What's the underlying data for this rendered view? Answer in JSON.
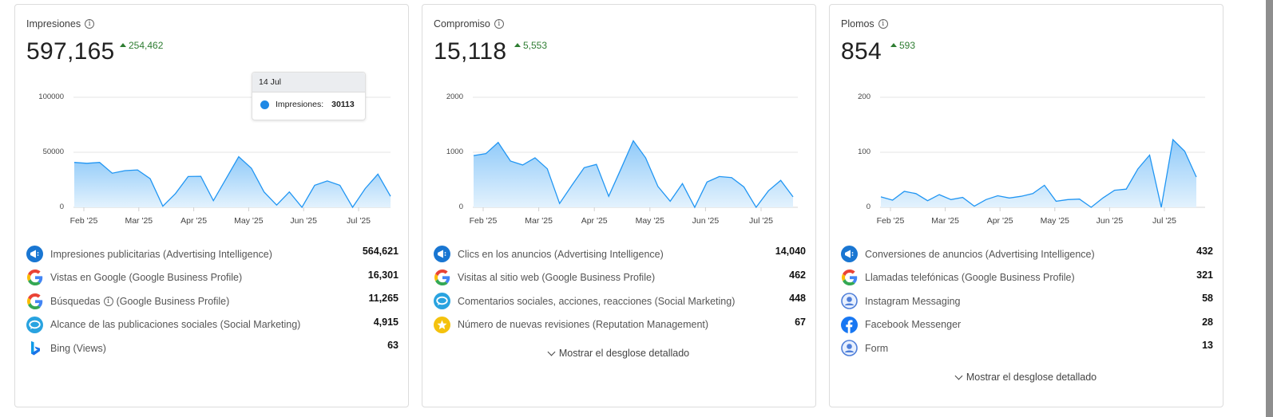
{
  "cards": [
    {
      "title": "Impresiones",
      "value": "597,165",
      "delta": "254,462",
      "y_ticks": [
        "100000",
        "50000",
        "0"
      ],
      "x_ticks": [
        "Feb '25",
        "Mar '25",
        "Apr '25",
        "May '25",
        "Jun '25",
        "Jul '25"
      ],
      "tooltip": {
        "date": "14 Jul",
        "series": "Impresiones:",
        "value": "30113"
      },
      "rows": [
        {
          "icon": "advertising-megaphone-icon",
          "label": "Impresiones publicitarias (Advertising Intelligence)",
          "value": "564,621"
        },
        {
          "icon": "google-icon",
          "label": "Vistas en Google (Google Business Profile)",
          "value": "16,301"
        },
        {
          "icon": "google-icon",
          "label_a": "Búsquedas",
          "label_b": "(Google Business Profile)",
          "value": "11,265"
        },
        {
          "icon": "social-chat-icon",
          "label": "Alcance de las publicaciones sociales (Social Marketing)",
          "value": "4,915"
        },
        {
          "icon": "bing-icon",
          "label": "Bing (Views)",
          "value": "63"
        }
      ]
    },
    {
      "title": "Compromiso",
      "value": "15,118",
      "delta": "5,553",
      "y_ticks": [
        "2000",
        "1000",
        "0"
      ],
      "x_ticks": [
        "Feb '25",
        "Mar '25",
        "Apr '25",
        "May '25",
        "Jun '25",
        "Jul '25"
      ],
      "rows": [
        {
          "icon": "advertising-megaphone-icon",
          "label": "Clics en los anuncios (Advertising Intelligence)",
          "value": "14,040"
        },
        {
          "icon": "google-icon",
          "label": "Visitas al sitio web (Google Business Profile)",
          "value": "462"
        },
        {
          "icon": "social-chat-icon",
          "label": "Comentarios sociales, acciones, reacciones (Social Marketing)",
          "value": "448"
        },
        {
          "icon": "star-icon",
          "label": "Número de nuevas revisiones (Reputation Management)",
          "value": "67"
        }
      ],
      "more_label": "Mostrar el desglose detallado"
    },
    {
      "title": "Plomos",
      "value": "854",
      "delta": "593",
      "y_ticks": [
        "200",
        "100",
        "0"
      ],
      "x_ticks": [
        "Feb '25",
        "Mar '25",
        "Apr '25",
        "May '25",
        "Jun '25",
        "Jul '25"
      ],
      "rows": [
        {
          "icon": "advertising-megaphone-icon",
          "label": "Conversiones de anuncios (Advertising Intelligence)",
          "value": "432"
        },
        {
          "icon": "google-icon",
          "label": "Llamadas telefónicas (Google Business Profile)",
          "value": "321"
        },
        {
          "icon": "user-circle-icon",
          "label": "Instagram Messaging",
          "value": "58"
        },
        {
          "icon": "facebook-icon",
          "label": "Facebook Messenger",
          "value": "28"
        },
        {
          "icon": "user-circle-icon",
          "label": "Form",
          "value": "13"
        }
      ],
      "more_label": "Mostrar el desglose detallado"
    }
  ],
  "colors": {
    "line": "#2196f3",
    "fill_top": "#90caf9",
    "fill_bottom": "#e3f2fd",
    "delta": "#2e7d32"
  },
  "chart_data": [
    {
      "type": "area",
      "title": "Impresiones",
      "x": [
        "Feb '25",
        "Mar '25",
        "Apr '25",
        "May '25",
        "Jun '25",
        "Jul '25"
      ],
      "ylim": [
        0,
        100000
      ],
      "series": [
        {
          "name": "Impresiones",
          "values": [
            40800,
            40000,
            40800,
            31000,
            33300,
            34000,
            26000,
            1000,
            12500,
            28000,
            28200,
            6000,
            26000,
            46000,
            35500,
            14000,
            2000,
            14000,
            0,
            20000,
            24000,
            20000,
            0,
            17000,
            30113,
            10000
          ]
        }
      ],
      "grid": true
    },
    {
      "type": "area",
      "title": "Compromiso",
      "x": [
        "Feb '25",
        "Mar '25",
        "Apr '25",
        "May '25",
        "Jun '25",
        "Jul '25"
      ],
      "ylim": [
        0,
        2000
      ],
      "series": [
        {
          "name": "Compromiso",
          "values": [
            940,
            975,
            1180,
            840,
            770,
            900,
            700,
            70,
            400,
            720,
            780,
            200,
            700,
            1210,
            900,
            380,
            110,
            430,
            0,
            460,
            560,
            540,
            370,
            0,
            300,
            490,
            190
          ]
        }
      ],
      "grid": true
    },
    {
      "type": "area",
      "title": "Plomos",
      "x": [
        "Feb '25",
        "Mar '25",
        "Apr '25",
        "May '25",
        "Jun '25",
        "Jul '25"
      ],
      "ylim": [
        0,
        200
      ],
      "series": [
        {
          "name": "Plomos",
          "values": [
            19,
            13,
            29,
            25,
            12,
            23,
            14,
            18,
            2,
            14,
            21,
            17,
            20,
            25,
            40,
            11,
            14,
            15,
            0,
            17,
            31,
            33,
            70,
            95,
            0,
            123,
            102,
            55
          ]
        }
      ],
      "grid": true
    }
  ]
}
